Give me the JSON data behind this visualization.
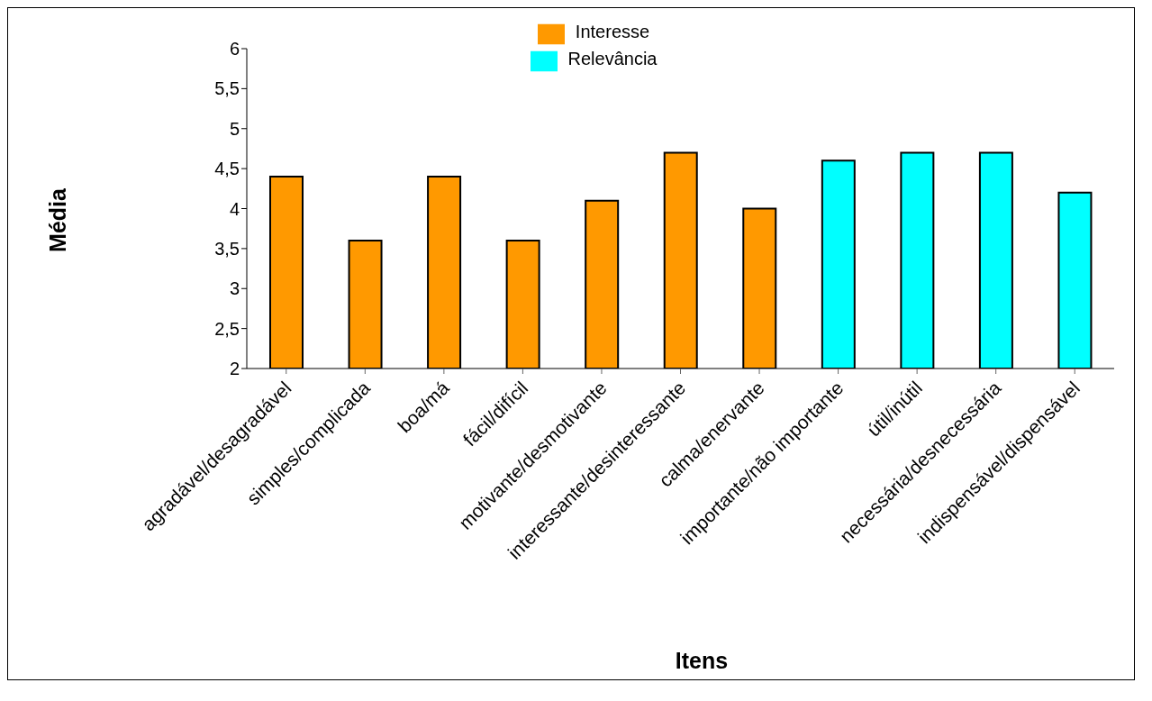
{
  "chart_data": {
    "type": "bar",
    "xlabel": "Itens",
    "ylabel": "Média",
    "categories": [
      "agradável/desagradável",
      "simples/complicada",
      "boa/má",
      "fácil/difícil",
      "motivante/desmotivante",
      "interessante/desinteressante",
      "calma/enervante",
      "importante/não importante",
      "útil/inútil",
      "necessária/desnecessária",
      "indispensável/dispensável"
    ],
    "series": [
      {
        "name": "Interesse",
        "color": "#ff9900",
        "values": [
          4.4,
          3.6,
          4.4,
          3.6,
          4.1,
          4.7,
          4.0,
          null,
          null,
          null,
          null
        ]
      },
      {
        "name": "Relevância",
        "color": "#00ffff",
        "values": [
          null,
          null,
          null,
          null,
          null,
          null,
          null,
          4.6,
          4.7,
          4.7,
          4.2
        ]
      }
    ],
    "ylim": [
      2,
      6
    ],
    "yticks": [
      2,
      {
        "value": 2.5,
        "label": "2,5"
      },
      3,
      {
        "value": 3.5,
        "label": "3,5"
      },
      4,
      {
        "value": 4.5,
        "label": "4,5"
      },
      5,
      {
        "value": 5.5,
        "label": "5,5"
      },
      6
    ],
    "grid": false,
    "legend": "top"
  }
}
